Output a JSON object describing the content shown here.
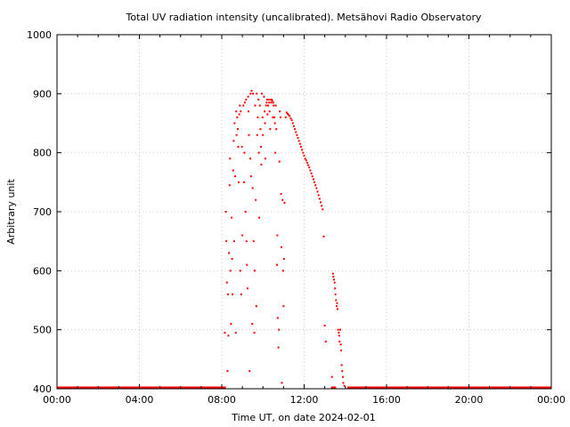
{
  "chart_data": {
    "type": "scatter",
    "title": "Total UV radiation intensity (uncalibrated). Metsähovi Radio Observatory",
    "xlabel": "Time UT, on date 2024-02-01",
    "ylabel": "Arbitrary unit",
    "x_unit": "hours UT",
    "xlim": [
      0,
      24
    ],
    "ylim": [
      400,
      1000
    ],
    "x_ticks": [
      {
        "value": 0,
        "label": "00:00"
      },
      {
        "value": 4,
        "label": "04:00"
      },
      {
        "value": 8,
        "label": "08:00"
      },
      {
        "value": 12,
        "label": "12:00"
      },
      {
        "value": 16,
        "label": "16:00"
      },
      {
        "value": 20,
        "label": "20:00"
      },
      {
        "value": 24,
        "label": "00:00"
      }
    ],
    "y_ticks": [
      400,
      500,
      600,
      700,
      800,
      900,
      1000
    ],
    "grid": true,
    "marker_color": "#ff0000",
    "baseline_value": 400,
    "baseline_segments": [
      [
        0,
        8.2
      ],
      [
        13.3,
        13.55
      ],
      [
        14.1,
        24
      ]
    ],
    "series": [
      {
        "points": [
          [
            8.15,
            495
          ],
          [
            8.2,
            700
          ],
          [
            8.22,
            650
          ],
          [
            8.25,
            580
          ],
          [
            8.28,
            430
          ],
          [
            8.3,
            560
          ],
          [
            8.32,
            490
          ],
          [
            8.35,
            630
          ],
          [
            8.38,
            745
          ],
          [
            8.4,
            790
          ],
          [
            8.42,
            600
          ],
          [
            8.45,
            510
          ],
          [
            8.48,
            690
          ],
          [
            8.5,
            620
          ],
          [
            8.52,
            560
          ],
          [
            8.55,
            770
          ],
          [
            8.58,
            820
          ],
          [
            8.6,
            650
          ],
          [
            8.62,
            850
          ],
          [
            8.65,
            760
          ],
          [
            8.68,
            495
          ],
          [
            8.7,
            870
          ],
          [
            8.72,
            830
          ],
          [
            8.75,
            860
          ],
          [
            8.78,
            840
          ],
          [
            8.8,
            810
          ],
          [
            8.82,
            750
          ],
          [
            8.85,
            865
          ],
          [
            8.88,
            880
          ],
          [
            8.9,
            600
          ],
          [
            8.92,
            870
          ],
          [
            8.95,
            560
          ],
          [
            8.98,
            810
          ],
          [
            9.0,
            660
          ],
          [
            9.05,
            880
          ],
          [
            9.08,
            750
          ],
          [
            9.1,
            800
          ],
          [
            9.12,
            885
          ],
          [
            9.15,
            700
          ],
          [
            9.18,
            890
          ],
          [
            9.2,
            650
          ],
          [
            9.22,
            610
          ],
          [
            9.25,
            570
          ],
          [
            9.28,
            895
          ],
          [
            9.3,
            870
          ],
          [
            9.32,
            830
          ],
          [
            9.35,
            430
          ],
          [
            9.38,
            790
          ],
          [
            9.4,
            900
          ],
          [
            9.42,
            760
          ],
          [
            9.45,
            905
          ],
          [
            9.48,
            510
          ],
          [
            9.5,
            740
          ],
          [
            9.52,
            900
          ],
          [
            9.55,
            650
          ],
          [
            9.58,
            495
          ],
          [
            9.6,
            600
          ],
          [
            9.62,
            880
          ],
          [
            9.65,
            720
          ],
          [
            9.68,
            540
          ],
          [
            9.7,
            900
          ],
          [
            9.72,
            830
          ],
          [
            9.75,
            860
          ],
          [
            9.78,
            890
          ],
          [
            9.8,
            800
          ],
          [
            9.82,
            690
          ],
          [
            9.85,
            880
          ],
          [
            9.88,
            840
          ],
          [
            9.9,
            810
          ],
          [
            9.92,
            780
          ],
          [
            9.95,
            900
          ],
          [
            9.98,
            860
          ],
          [
            10.0,
            830
          ],
          [
            10.05,
            895
          ],
          [
            10.08,
            870
          ],
          [
            10.1,
            850
          ],
          [
            10.12,
            790
          ],
          [
            10.15,
            880
          ],
          [
            10.18,
            885
          ],
          [
            10.2,
            890
          ],
          [
            10.22,
            865
          ],
          [
            10.25,
            880
          ],
          [
            10.28,
            890
          ],
          [
            10.3,
            885
          ],
          [
            10.32,
            870
          ],
          [
            10.35,
            840
          ],
          [
            10.38,
            890
          ],
          [
            10.4,
            885
          ],
          [
            10.42,
            890
          ],
          [
            10.45,
            888
          ],
          [
            10.48,
            860
          ],
          [
            10.5,
            885
          ],
          [
            10.52,
            880
          ],
          [
            10.55,
            860
          ],
          [
            10.58,
            850
          ],
          [
            10.6,
            800
          ],
          [
            10.62,
            880
          ],
          [
            10.65,
            840
          ],
          [
            10.68,
            610
          ],
          [
            10.7,
            660
          ],
          [
            10.72,
            520
          ],
          [
            10.75,
            470
          ],
          [
            10.78,
            500
          ],
          [
            10.8,
            785
          ],
          [
            10.82,
            870
          ],
          [
            10.85,
            860
          ],
          [
            10.88,
            730
          ],
          [
            10.9,
            640
          ],
          [
            10.92,
            410
          ],
          [
            10.95,
            720
          ],
          [
            10.98,
            600
          ],
          [
            11.0,
            540
          ],
          [
            11.02,
            620
          ],
          [
            11.05,
            715
          ],
          [
            11.1,
            860
          ],
          [
            11.15,
            868
          ],
          [
            11.2,
            866
          ],
          [
            11.25,
            864
          ],
          [
            11.3,
            862
          ],
          [
            11.35,
            858
          ],
          [
            11.4,
            855
          ],
          [
            11.45,
            850
          ],
          [
            11.5,
            845
          ],
          [
            11.55,
            840
          ],
          [
            11.6,
            835
          ],
          [
            11.65,
            830
          ],
          [
            11.7,
            825
          ],
          [
            11.75,
            820
          ],
          [
            11.8,
            815
          ],
          [
            11.85,
            810
          ],
          [
            11.9,
            805
          ],
          [
            11.95,
            800
          ],
          [
            12.0,
            795
          ],
          [
            12.05,
            790
          ],
          [
            12.1,
            787
          ],
          [
            12.15,
            783
          ],
          [
            12.2,
            779
          ],
          [
            12.25,
            775
          ],
          [
            12.3,
            770
          ],
          [
            12.35,
            765
          ],
          [
            12.4,
            760
          ],
          [
            12.45,
            755
          ],
          [
            12.5,
            750
          ],
          [
            12.55,
            745
          ],
          [
            12.6,
            740
          ],
          [
            12.65,
            734
          ],
          [
            12.7,
            728
          ],
          [
            12.75,
            722
          ],
          [
            12.8,
            716
          ],
          [
            12.85,
            710
          ],
          [
            12.9,
            704
          ],
          [
            12.95,
            658
          ],
          [
            13.0,
            507
          ],
          [
            13.05,
            480
          ],
          [
            13.35,
            420
          ],
          [
            13.4,
            595
          ],
          [
            13.42,
            590
          ],
          [
            13.45,
            585
          ],
          [
            13.48,
            580
          ],
          [
            13.5,
            570
          ],
          [
            13.52,
            560
          ],
          [
            13.55,
            550
          ],
          [
            13.58,
            540
          ],
          [
            13.6,
            545
          ],
          [
            13.62,
            535
          ],
          [
            13.65,
            500
          ],
          [
            13.68,
            495
          ],
          [
            13.7,
            490
          ],
          [
            13.72,
            480
          ],
          [
            13.75,
            500
          ],
          [
            13.78,
            475
          ],
          [
            13.8,
            465
          ],
          [
            13.82,
            440
          ],
          [
            13.85,
            430
          ],
          [
            13.88,
            420
          ],
          [
            13.9,
            410
          ],
          [
            13.95,
            405
          ]
        ]
      }
    ]
  }
}
